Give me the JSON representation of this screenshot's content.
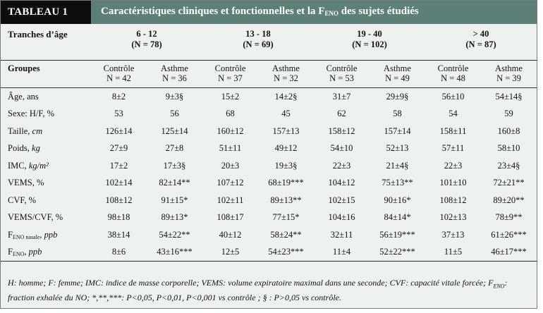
{
  "header": {
    "label": "TABLEAU 1",
    "title_main": "Caractéristiques cliniques et fonctionnelles et la F",
    "title_sub": "ENO",
    "title_rest": " des sujets étudiés"
  },
  "age_row": {
    "label": "Tranches d’âge",
    "groups": [
      {
        "range": "6 - 12",
        "n": "(N = 78)"
      },
      {
        "range": "13 - 18",
        "n": "(N = 69)"
      },
      {
        "range": "19 - 40",
        "n": "(N = 102)"
      },
      {
        "range": "> 40",
        "n": "(N = 87)"
      }
    ]
  },
  "group_row": {
    "label": "Groupes",
    "cols": [
      {
        "name": "Contrôle",
        "n": "N = 42"
      },
      {
        "name": "Asthme",
        "n": "N = 36"
      },
      {
        "name": "Contrôle",
        "n": "N = 37"
      },
      {
        "name": "Asthme",
        "n": "N = 32"
      },
      {
        "name": "Contrôle",
        "n": "N = 53"
      },
      {
        "name": "Asthme",
        "n": "N = 49"
      },
      {
        "name": "Contrôle",
        "n": "N = 48"
      },
      {
        "name": "Asthme",
        "n": "N = 39"
      }
    ]
  },
  "rows": [
    {
      "label": "Âge, ans",
      "unit": "",
      "values": [
        "8±2",
        "9±3§",
        "15±2",
        "14±2§",
        "31±7",
        "29±9§",
        "56±10",
        "54±14§"
      ]
    },
    {
      "label": "Sexe: H/F, %",
      "unit": "",
      "values": [
        "53",
        "56",
        "68",
        "45",
        "62",
        "58",
        "54",
        "59"
      ]
    },
    {
      "label": "Taille, ",
      "unit": "cm",
      "values": [
        "126±14",
        "125±14",
        "160±12",
        "157±13",
        "158±12",
        "157±14",
        "158±11",
        "160±8"
      ]
    },
    {
      "label": "Poids, ",
      "unit": "kg",
      "values": [
        "27±9",
        "27±8",
        "51±11",
        "49±12",
        "54±10",
        "52±13",
        "57±11",
        "58±10"
      ]
    },
    {
      "label": "IMC, ",
      "unit": "kg/m²",
      "values": [
        "17±2",
        "17±3§",
        "20±3",
        "19±3§",
        "22±3",
        "21±4§",
        "22±3",
        "23±4§"
      ]
    },
    {
      "label": "VEMS, %",
      "unit": "",
      "values": [
        "102±14",
        "82±14**",
        "107±12",
        "68±19***",
        "104±12",
        "75±13**",
        "101±10",
        "72±21**"
      ]
    },
    {
      "label": "CVF, %",
      "unit": "",
      "values": [
        "108±12",
        "91±15*",
        "102±11",
        "89±13**",
        "102±15",
        "90±16*",
        "108±12",
        "89±20**"
      ]
    },
    {
      "label": "VEMS/CVF, %",
      "unit": "",
      "values": [
        "98±18",
        "89±13*",
        "108±17",
        "77±15*",
        "104±16",
        "84±14*",
        "102±13",
        "78±9**"
      ]
    },
    {
      "label": "F",
      "sub": "ENO nasale",
      "unit": ", ppb",
      "values": [
        "38±14",
        "54±22**",
        "40±12",
        "58±24**",
        "32±11",
        "56±19***",
        "37±13",
        "61±26***"
      ]
    },
    {
      "label": "F",
      "sub": "ENO",
      "unit": ", ppb",
      "values": [
        "8±6",
        "43±16***",
        "12±5",
        "54±23***",
        "11±4",
        "52±22***",
        "11±5",
        "46±17***"
      ]
    }
  ],
  "footnote": {
    "part1": "H: homme; F: femme; IMC: indice de masse corporelle; VEMS: volume expiratoire maximal dans une seconde; CVF: capacité vitale forcée; F",
    "sub": "ENO",
    "part2": ": fraction exhalée du NO; *,**,***: P<0,05, P<0,01, P<0,001 vs contrôle ; § : P>0,05 vs contrôle."
  }
}
